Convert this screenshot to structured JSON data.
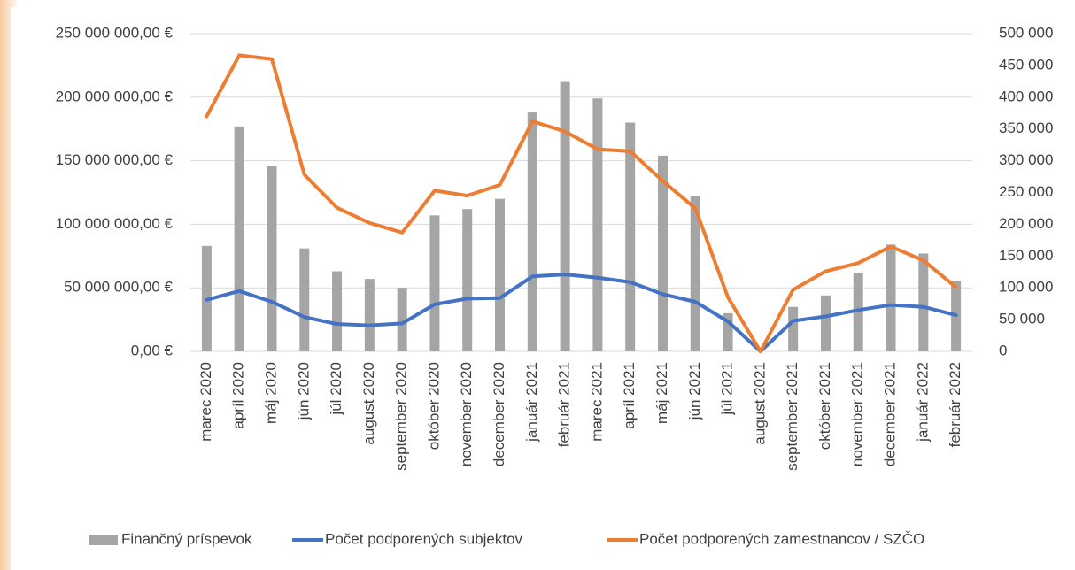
{
  "chart_data": {
    "type": "bar",
    "categories": [
      "marec 2020",
      "apríl 2020",
      "máj 2020",
      "jún 2020",
      "júl 2020",
      "august 2020",
      "september 2020",
      "október 2020",
      "november 2020",
      "december 2020",
      "január 2021",
      "február 2021",
      "marec 2021",
      "apríl 2021",
      "máj 2021",
      "jún 2021",
      "júl 2021",
      "august 2021",
      "september 2021",
      "október 2021",
      "november 2021",
      "december 2021",
      "január 2022",
      "február 2022"
    ],
    "series": [
      {
        "name": "Finančný príspevok",
        "color": "#a5a5a5",
        "type": "bar",
        "axis": "y",
        "values": [
          83000000,
          177000000,
          146000000,
          81000000,
          63000000,
          57000000,
          50000000,
          107000000,
          112000000,
          120000000,
          188000000,
          212000000,
          199000000,
          180000000,
          154000000,
          122000000,
          30000000,
          0,
          35000000,
          44000000,
          62000000,
          84000000,
          77000000,
          55000000
        ]
      },
      {
        "name": "Počet podporených subjektov",
        "color": "#4472c4",
        "type": "line",
        "axis": "y2",
        "values": [
          81000,
          95000,
          78000,
          54000,
          43000,
          41000,
          44000,
          74000,
          83000,
          84000,
          118000,
          121000,
          116000,
          109000,
          90000,
          78000,
          47000,
          0,
          48000,
          55000,
          65000,
          73000,
          70000,
          57000
        ]
      },
      {
        "name": "Počet podporených zamestnancov / SZČO",
        "color": "#ed7d31",
        "type": "line",
        "axis": "y2",
        "values": [
          370000,
          466000,
          460000,
          278000,
          226000,
          202000,
          187000,
          253000,
          245000,
          262000,
          362000,
          346000,
          318000,
          315000,
          268000,
          225000,
          85000,
          0,
          97000,
          126000,
          139000,
          165000,
          143000,
          101000
        ]
      }
    ],
    "ylim": [
      0,
      250000000
    ],
    "yticks": [
      {
        "value": 0,
        "label": "0,00 €"
      },
      {
        "value": 50000000,
        "label": "50 000 000,00 €"
      },
      {
        "value": 100000000,
        "label": "100 000 000,00 €"
      },
      {
        "value": 150000000,
        "label": "150 000 000,00 €"
      },
      {
        "value": 200000000,
        "label": "200 000 000,00 €"
      },
      {
        "value": 250000000,
        "label": "250 000 000,00 €"
      }
    ],
    "y2lim": [
      0,
      500000
    ],
    "y2ticks": [
      0,
      {
        "value": 50000,
        "label": "50 000"
      },
      {
        "value": 100000,
        "label": "100 000"
      },
      {
        "value": 150000,
        "label": "150 000"
      },
      {
        "value": 200000,
        "label": "200 000"
      },
      {
        "value": 250000,
        "label": "250 000"
      },
      {
        "value": 300000,
        "label": "300 000"
      },
      {
        "value": 350000,
        "label": "350 000"
      },
      {
        "value": 400000,
        "label": "400 000"
      },
      {
        "value": 450000,
        "label": "450 000"
      },
      {
        "value": 500000,
        "label": "500 000"
      }
    ],
    "grid": true,
    "legend": "bottom"
  }
}
